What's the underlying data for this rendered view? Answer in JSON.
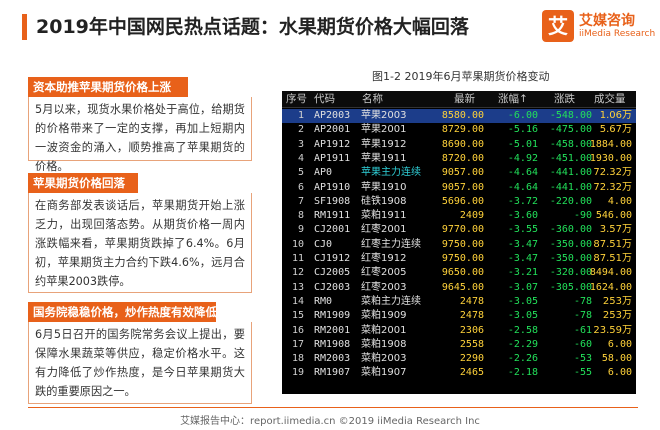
{
  "title": "2019年中国网民热点话题：水果期货价格大幅回落",
  "logo": {
    "mark": "艾",
    "cn": "艾媒咨询",
    "en": "iiMedia Research"
  },
  "sections": [
    {
      "heading": "资本助推苹果期货价格上涨",
      "text": "5月以来，现货水果价格处于高位，给期货的价格带来了一定的支撑，再加上短期内一波资金的涌入，顺势推高了苹果期货的价格。"
    },
    {
      "heading": "苹果期货价格回落",
      "text": "在商务部发表谈话后，苹果期货开始上涨乏力，出现回落态势。从期货价格一周内涨跌幅来看，苹果期货跌掉了6.4%。6月初，苹果期货主力合约下跌4.6%，远月合约苹果2003跌停。"
    },
    {
      "heading": "国务院稳稳价格，炒作热度有效降低",
      "text": "6月5日召开的国务院常务会议上提出，要保障水果蔬菜等供应，稳定价格水平。这有力降低了炒作热度，是今日苹果期货大跌的重要原因之一。"
    }
  ],
  "chart_caption": "图1-2 2019年6月苹果期货价格变动",
  "table": {
    "headers": [
      "序号",
      "代码",
      "名称",
      "最新",
      "涨幅↑",
      "涨跌",
      "成交量"
    ],
    "rows": [
      {
        "idx": "1",
        "code": "AP2003",
        "name": "苹果2003",
        "price": "8580.00",
        "pct": "-6.00",
        "chg": "-548.00",
        "vol": "1.06万",
        "selected": true
      },
      {
        "idx": "2",
        "code": "AP2001",
        "name": "苹果2001",
        "price": "8729.00",
        "pct": "-5.16",
        "chg": "-475.00",
        "vol": "5.67万"
      },
      {
        "idx": "3",
        "code": "AP1912",
        "name": "苹果1912",
        "price": "8690.00",
        "pct": "-5.01",
        "chg": "-458.00",
        "vol": "1884.00"
      },
      {
        "idx": "4",
        "code": "AP1911",
        "name": "苹果1911",
        "price": "8720.00",
        "pct": "-4.92",
        "chg": "-451.00",
        "vol": "1930.00"
      },
      {
        "idx": "5",
        "code": "AP0",
        "name": "苹果主力连续",
        "price": "9057.00",
        "pct": "-4.64",
        "chg": "-441.00",
        "vol": "72.32万",
        "main": true
      },
      {
        "idx": "6",
        "code": "AP1910",
        "name": "苹果1910",
        "price": "9057.00",
        "pct": "-4.64",
        "chg": "-441.00",
        "vol": "72.32万"
      },
      {
        "idx": "7",
        "code": "SF1908",
        "name": "硅铁1908",
        "price": "5696.00",
        "pct": "-3.72",
        "chg": "-220.00",
        "vol": "4.00"
      },
      {
        "idx": "8",
        "code": "RM1911",
        "name": "菜粕1911",
        "price": "2409",
        "pct": "-3.60",
        "chg": "-90",
        "vol": "546.00"
      },
      {
        "idx": "9",
        "code": "CJ2001",
        "name": "红枣2001",
        "price": "9770.00",
        "pct": "-3.55",
        "chg": "-360.00",
        "vol": "3.57万"
      },
      {
        "idx": "10",
        "code": "CJ0",
        "name": "红枣主力连续",
        "price": "9750.00",
        "pct": "-3.47",
        "chg": "-350.00",
        "vol": "87.51万"
      },
      {
        "idx": "11",
        "code": "CJ1912",
        "name": "红枣1912",
        "price": "9750.00",
        "pct": "-3.47",
        "chg": "-350.00",
        "vol": "87.51万"
      },
      {
        "idx": "12",
        "code": "CJ2005",
        "name": "红枣2005",
        "price": "9650.00",
        "pct": "-3.21",
        "chg": "-320.00",
        "vol": "8494.00"
      },
      {
        "idx": "13",
        "code": "CJ2003",
        "name": "红枣2003",
        "price": "9645.00",
        "pct": "-3.07",
        "chg": "-305.00",
        "vol": "1624.00"
      },
      {
        "idx": "14",
        "code": "RM0",
        "name": "菜粕主力连续",
        "price": "2478",
        "pct": "-3.05",
        "chg": "-78",
        "vol": "253万"
      },
      {
        "idx": "15",
        "code": "RM1909",
        "name": "菜粕1909",
        "price": "2478",
        "pct": "-3.05",
        "chg": "-78",
        "vol": "253万"
      },
      {
        "idx": "16",
        "code": "RM2001",
        "name": "菜粕2001",
        "price": "2306",
        "pct": "-2.58",
        "chg": "-61",
        "vol": "23.59万"
      },
      {
        "idx": "17",
        "code": "RM1908",
        "name": "菜粕1908",
        "price": "2558",
        "pct": "-2.29",
        "chg": "-60",
        "vol": "6.00"
      },
      {
        "idx": "18",
        "code": "RM2003",
        "name": "菜粕2003",
        "price": "2290",
        "pct": "-2.26",
        "chg": "-53",
        "vol": "58.00"
      },
      {
        "idx": "19",
        "code": "RM1907",
        "name": "菜粕1907",
        "price": "2465",
        "pct": "-2.18",
        "chg": "-55",
        "vol": "6.00"
      }
    ]
  },
  "footer": "艾媒报告中心：report.iimedia.cn  ©2019  iiMedia Research Inc"
}
